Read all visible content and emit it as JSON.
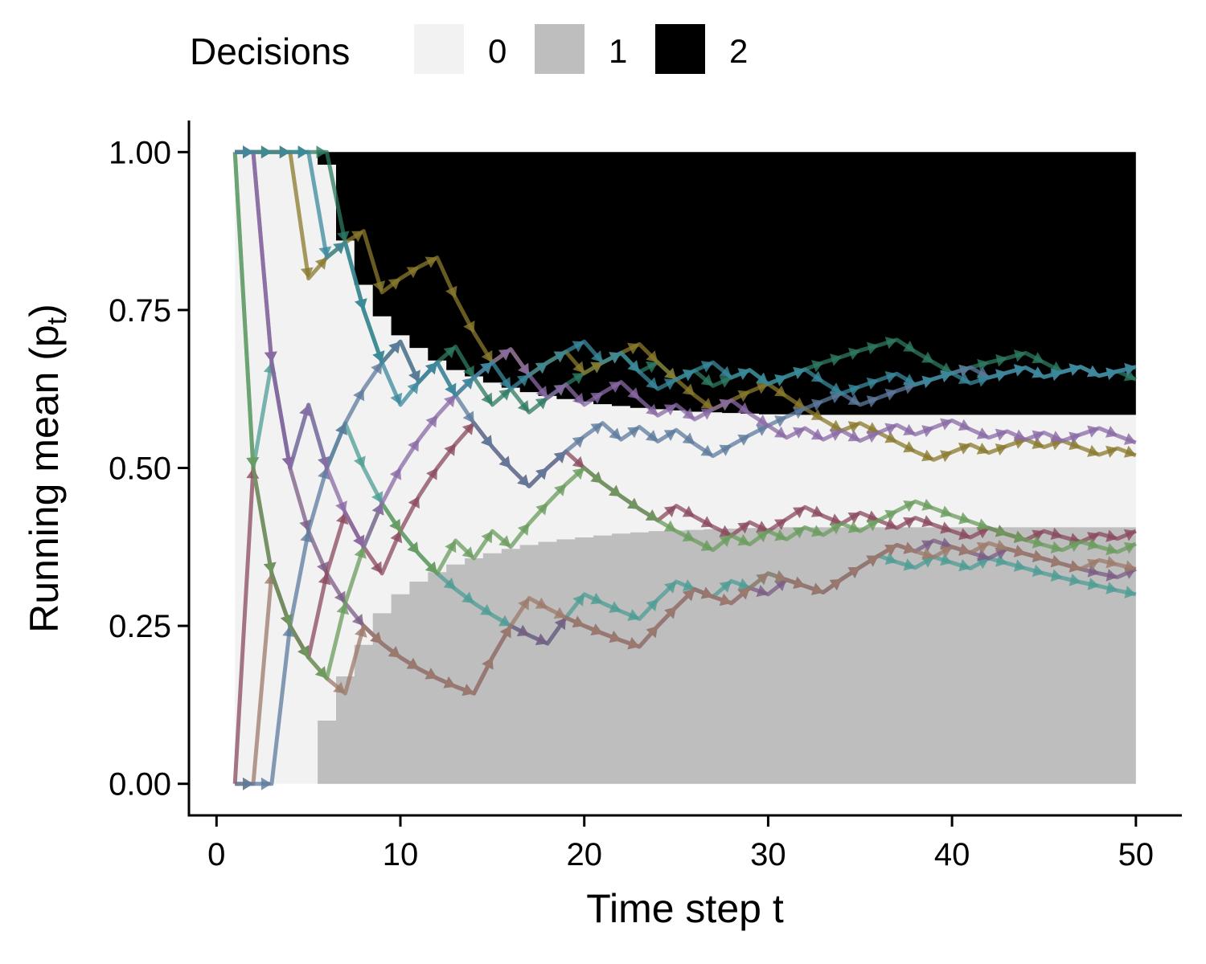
{
  "chart_data": {
    "type": "line",
    "xlabel": "Time step t",
    "ylabel_main": "Running mean (p",
    "ylabel_sub": "t",
    "ylabel_close": ")",
    "xlim": [
      -1.5,
      52.5
    ],
    "ylim": [
      -0.05,
      1.05
    ],
    "x_ticks": [
      0,
      10,
      20,
      30,
      40,
      50
    ],
    "x_tick_labels": [
      "0",
      "10",
      "20",
      "30",
      "40",
      "50"
    ],
    "y_ticks": [
      0,
      0.25,
      0.5,
      0.75,
      1.0
    ],
    "y_tick_labels": [
      "0.00",
      "0.25",
      "0.50",
      "0.75",
      "1.00"
    ],
    "grid": false,
    "legend": {
      "title": "Decisions",
      "position": "top",
      "entries": [
        {
          "label": "0",
          "color": "#F2F2F2"
        },
        {
          "label": "1",
          "color": "#BEBEBE"
        },
        {
          "label": "2",
          "color": "#000000"
        }
      ]
    },
    "decision_regions": [
      {
        "decision": "0",
        "color": "#F2F2F2"
      },
      {
        "decision": "1",
        "color": "#BEBEBE"
      },
      {
        "decision": "2",
        "color": "#000000"
      }
    ],
    "decision_boundaries": {
      "t": [
        1,
        2,
        3,
        4,
        5,
        6,
        7,
        8,
        9,
        10,
        11,
        12,
        13,
        14,
        15,
        16,
        17,
        18,
        19,
        20,
        21,
        22,
        23,
        24,
        25,
        26,
        27,
        28,
        29,
        30,
        31,
        32,
        33,
        34,
        35,
        36,
        37,
        38,
        39,
        40,
        41,
        42,
        43,
        44,
        45,
        46,
        47,
        48,
        49,
        50
      ],
      "upper": [
        1.0,
        1.0,
        1.0,
        1.0,
        1.0,
        0.98,
        0.86,
        0.79,
        0.74,
        0.71,
        0.69,
        0.67,
        0.655,
        0.645,
        0.635,
        0.627,
        0.62,
        0.614,
        0.609,
        0.605,
        0.601,
        0.598,
        0.595,
        0.593,
        0.591,
        0.589,
        0.588,
        0.587,
        0.586,
        0.585,
        0.585,
        0.584,
        0.584,
        0.584,
        0.584,
        0.584,
        0.584,
        0.584,
        0.584,
        0.584,
        0.584,
        0.584,
        0.584,
        0.584,
        0.584,
        0.584,
        0.584,
        0.584,
        0.584,
        0.584
      ],
      "lower": [
        0.0,
        0.0,
        0.0,
        0.0,
        0.0,
        0.1,
        0.17,
        0.22,
        0.27,
        0.3,
        0.32,
        0.335,
        0.347,
        0.357,
        0.365,
        0.372,
        0.378,
        0.383,
        0.387,
        0.39,
        0.393,
        0.396,
        0.398,
        0.4,
        0.401,
        0.402,
        0.403,
        0.404,
        0.405,
        0.405,
        0.406,
        0.406,
        0.406,
        0.406,
        0.406,
        0.406,
        0.406,
        0.406,
        0.406,
        0.406,
        0.406,
        0.406,
        0.406,
        0.406,
        0.406,
        0.406,
        0.406,
        0.406,
        0.406,
        0.406
      ]
    },
    "series": [
      {
        "color": "#4E9C94",
        "x": [
          1,
          2,
          3,
          4,
          5,
          6,
          7,
          8,
          9,
          10,
          11,
          12,
          13,
          14,
          15,
          16,
          17,
          18,
          19,
          20,
          21,
          22,
          23,
          24,
          25,
          26,
          27,
          28,
          29,
          30,
          31,
          32,
          33,
          34,
          35,
          36,
          37,
          38,
          39,
          40,
          41,
          42,
          43,
          44,
          45,
          46,
          47,
          48,
          49,
          50
        ],
        "values": [
          1.0,
          0.5,
          0.667,
          0.5,
          0.6,
          0.5,
          0.571,
          0.5,
          0.444,
          0.4,
          0.364,
          0.333,
          0.308,
          0.286,
          0.267,
          0.25,
          0.235,
          0.222,
          0.263,
          0.3,
          0.286,
          0.273,
          0.261,
          0.292,
          0.32,
          0.308,
          0.296,
          0.321,
          0.31,
          0.333,
          0.323,
          0.313,
          0.303,
          0.324,
          0.343,
          0.361,
          0.351,
          0.342,
          0.359,
          0.35,
          0.341,
          0.357,
          0.349,
          0.341,
          0.333,
          0.326,
          0.319,
          0.313,
          0.306,
          0.3
        ]
      },
      {
        "color": "#7A5C84",
        "x": [
          1,
          2,
          3,
          4,
          5,
          6,
          7,
          8,
          9,
          10,
          11,
          12,
          13,
          14,
          15,
          16,
          17,
          18,
          19,
          20,
          21,
          22,
          23,
          24,
          25,
          26,
          27,
          28,
          29,
          30,
          31,
          32,
          33,
          34,
          35,
          36,
          37,
          38,
          39,
          40,
          41,
          42,
          43,
          44,
          45,
          46,
          47,
          48,
          49,
          50
        ],
        "values": [
          1.0,
          1.0,
          0.667,
          0.5,
          0.4,
          0.333,
          0.286,
          0.25,
          0.222,
          0.2,
          0.182,
          0.167,
          0.154,
          0.143,
          0.2,
          0.25,
          0.235,
          0.222,
          0.263,
          0.25,
          0.238,
          0.227,
          0.217,
          0.25,
          0.28,
          0.308,
          0.296,
          0.286,
          0.31,
          0.3,
          0.323,
          0.313,
          0.303,
          0.324,
          0.343,
          0.361,
          0.378,
          0.368,
          0.385,
          0.375,
          0.366,
          0.357,
          0.372,
          0.364,
          0.356,
          0.348,
          0.34,
          0.333,
          0.327,
          0.34
        ]
      },
      {
        "color": "#2E7A63",
        "x": [
          1,
          2,
          3,
          4,
          5,
          6,
          7,
          8,
          9,
          10,
          11,
          12,
          13,
          14,
          15,
          16,
          17,
          18,
          19,
          20,
          21,
          22,
          23,
          24,
          25,
          26,
          27,
          28,
          29,
          30,
          31,
          32,
          33,
          34,
          35,
          36,
          37,
          38,
          39,
          40,
          41,
          42,
          43,
          44,
          45,
          46,
          47,
          48,
          49,
          50
        ],
        "values": [
          1.0,
          1.0,
          1.0,
          1.0,
          1.0,
          1.0,
          0.857,
          0.75,
          0.667,
          0.7,
          0.636,
          0.667,
          0.692,
          0.643,
          0.6,
          0.625,
          0.588,
          0.611,
          0.632,
          0.65,
          0.667,
          0.682,
          0.652,
          0.667,
          0.64,
          0.654,
          0.63,
          0.643,
          0.655,
          0.633,
          0.645,
          0.656,
          0.667,
          0.676,
          0.686,
          0.694,
          0.703,
          0.684,
          0.667,
          0.65,
          0.659,
          0.667,
          0.674,
          0.682,
          0.667,
          0.652,
          0.66,
          0.646,
          0.653,
          0.64
        ]
      },
      {
        "color": "#8A7A2E",
        "x": [
          1,
          2,
          3,
          4,
          5,
          6,
          7,
          8,
          9,
          10,
          11,
          12,
          13,
          14,
          15,
          16,
          17,
          18,
          19,
          20,
          21,
          22,
          23,
          24,
          25,
          26,
          27,
          28,
          29,
          30,
          31,
          32,
          33,
          34,
          35,
          36,
          37,
          38,
          39,
          40,
          41,
          42,
          43,
          44,
          45,
          46,
          47,
          48,
          49,
          50
        ],
        "values": [
          1.0,
          1.0,
          1.0,
          1.0,
          0.8,
          0.833,
          0.857,
          0.875,
          0.778,
          0.8,
          0.818,
          0.833,
          0.769,
          0.714,
          0.667,
          0.688,
          0.647,
          0.667,
          0.684,
          0.65,
          0.667,
          0.682,
          0.696,
          0.667,
          0.64,
          0.615,
          0.593,
          0.607,
          0.621,
          0.633,
          0.613,
          0.594,
          0.576,
          0.559,
          0.571,
          0.556,
          0.541,
          0.526,
          0.513,
          0.525,
          0.537,
          0.524,
          0.535,
          0.545,
          0.533,
          0.543,
          0.532,
          0.521,
          0.531,
          0.52
        ]
      },
      {
        "color": "#9C7A6A",
        "x": [
          1,
          2,
          3,
          4,
          5,
          6,
          7,
          8,
          9,
          10,
          11,
          12,
          13,
          14,
          15,
          16,
          17,
          18,
          19,
          20,
          21,
          22,
          23,
          24,
          25,
          26,
          27,
          28,
          29,
          30,
          31,
          32,
          33,
          34,
          35,
          36,
          37,
          38,
          39,
          40,
          41,
          42,
          43,
          44,
          45,
          46,
          47,
          48,
          49,
          50
        ],
        "values": [
          0.0,
          0.0,
          0.333,
          0.25,
          0.2,
          0.167,
          0.143,
          0.25,
          0.222,
          0.2,
          0.182,
          0.167,
          0.154,
          0.143,
          0.2,
          0.25,
          0.294,
          0.278,
          0.263,
          0.25,
          0.238,
          0.227,
          0.217,
          0.25,
          0.28,
          0.308,
          0.296,
          0.286,
          0.31,
          0.333,
          0.323,
          0.313,
          0.303,
          0.324,
          0.343,
          0.361,
          0.378,
          0.368,
          0.359,
          0.375,
          0.366,
          0.381,
          0.372,
          0.364,
          0.356,
          0.348,
          0.34,
          0.354,
          0.347,
          0.34
        ]
      },
      {
        "color": "#8B4A5E",
        "x": [
          1,
          2,
          3,
          4,
          5,
          6,
          7,
          8,
          9,
          10,
          11,
          12,
          13,
          14,
          15,
          16,
          17,
          18,
          19,
          20,
          21,
          22,
          23,
          24,
          25,
          26,
          27,
          28,
          29,
          30,
          31,
          32,
          33,
          34,
          35,
          36,
          37,
          38,
          39,
          40,
          41,
          42,
          43,
          44,
          45,
          46,
          47,
          48,
          49,
          50
        ],
        "values": [
          0.0,
          0.5,
          0.333,
          0.25,
          0.2,
          0.333,
          0.429,
          0.375,
          0.333,
          0.4,
          0.455,
          0.5,
          0.538,
          0.571,
          0.533,
          0.5,
          0.471,
          0.5,
          0.526,
          0.5,
          0.476,
          0.455,
          0.435,
          0.417,
          0.44,
          0.423,
          0.407,
          0.393,
          0.414,
          0.4,
          0.419,
          0.438,
          0.424,
          0.412,
          0.429,
          0.417,
          0.405,
          0.421,
          0.41,
          0.4,
          0.39,
          0.405,
          0.395,
          0.386,
          0.4,
          0.391,
          0.383,
          0.396,
          0.388,
          0.4
        ]
      },
      {
        "color": "#5E7A9C",
        "x": [
          1,
          2,
          3,
          4,
          5,
          6,
          7,
          8,
          9,
          10,
          11,
          12,
          13,
          14,
          15,
          16,
          17,
          18,
          19,
          20,
          21,
          22,
          23,
          24,
          25,
          26,
          27,
          28,
          29,
          30,
          31,
          32,
          33,
          34,
          35,
          36,
          37,
          38,
          39,
          40,
          41,
          42,
          43,
          44,
          45,
          46,
          47,
          48,
          49,
          50
        ],
        "values": [
          0.0,
          0.0,
          0.0,
          0.25,
          0.4,
          0.5,
          0.571,
          0.625,
          0.667,
          0.7,
          0.636,
          0.667,
          0.615,
          0.571,
          0.533,
          0.5,
          0.471,
          0.5,
          0.526,
          0.55,
          0.571,
          0.545,
          0.565,
          0.542,
          0.56,
          0.538,
          0.519,
          0.536,
          0.552,
          0.567,
          0.581,
          0.594,
          0.606,
          0.618,
          0.6,
          0.611,
          0.622,
          0.632,
          0.641,
          0.65,
          0.659,
          0.643,
          0.651,
          0.659,
          0.644,
          0.652,
          0.66,
          0.646,
          0.653,
          0.66
        ]
      },
      {
        "color": "#6A9C5E",
        "x": [
          1,
          2,
          3,
          4,
          5,
          6,
          7,
          8,
          9,
          10,
          11,
          12,
          13,
          14,
          15,
          16,
          17,
          18,
          19,
          20,
          21,
          22,
          23,
          24,
          25,
          26,
          27,
          28,
          29,
          30,
          31,
          32,
          33,
          34,
          35,
          36,
          37,
          38,
          39,
          40,
          41,
          42,
          43,
          44,
          45,
          46,
          47,
          48,
          49,
          50
        ],
        "values": [
          1.0,
          0.5,
          0.333,
          0.25,
          0.2,
          0.167,
          0.286,
          0.375,
          0.444,
          0.4,
          0.364,
          0.333,
          0.385,
          0.357,
          0.4,
          0.375,
          0.412,
          0.444,
          0.474,
          0.5,
          0.476,
          0.455,
          0.435,
          0.417,
          0.4,
          0.385,
          0.37,
          0.393,
          0.379,
          0.4,
          0.387,
          0.406,
          0.394,
          0.412,
          0.4,
          0.417,
          0.432,
          0.447,
          0.436,
          0.425,
          0.415,
          0.405,
          0.395,
          0.386,
          0.378,
          0.37,
          0.383,
          0.375,
          0.367,
          0.38
        ]
      },
      {
        "color": "#8A6AA6",
        "x": [
          1,
          2,
          3,
          4,
          5,
          6,
          7,
          8,
          9,
          10,
          11,
          12,
          13,
          14,
          15,
          16,
          17,
          18,
          19,
          20,
          21,
          22,
          23,
          24,
          25,
          26,
          27,
          28,
          29,
          30,
          31,
          32,
          33,
          34,
          35,
          36,
          37,
          38,
          39,
          40,
          41,
          42,
          43,
          44,
          45,
          46,
          47,
          48,
          49,
          50
        ],
        "values": [
          1.0,
          1.0,
          0.667,
          0.5,
          0.6,
          0.5,
          0.429,
          0.375,
          0.444,
          0.5,
          0.545,
          0.583,
          0.615,
          0.643,
          0.667,
          0.688,
          0.647,
          0.611,
          0.632,
          0.6,
          0.619,
          0.636,
          0.609,
          0.583,
          0.6,
          0.577,
          0.593,
          0.607,
          0.586,
          0.567,
          0.548,
          0.563,
          0.545,
          0.559,
          0.543,
          0.556,
          0.568,
          0.553,
          0.564,
          0.575,
          0.561,
          0.548,
          0.558,
          0.545,
          0.556,
          0.543,
          0.553,
          0.563,
          0.551,
          0.54
        ]
      },
      {
        "color": "#3A8A9C",
        "x": [
          1,
          2,
          3,
          4,
          5,
          6,
          7,
          8,
          9,
          10,
          11,
          12,
          13,
          14,
          15,
          16,
          17,
          18,
          19,
          20,
          21,
          22,
          23,
          24,
          25,
          26,
          27,
          28,
          29,
          30,
          31,
          32,
          33,
          34,
          35,
          36,
          37,
          38,
          39,
          40,
          41,
          42,
          43,
          44,
          45,
          46,
          47,
          48,
          49,
          50
        ],
        "values": [
          1.0,
          1.0,
          1.0,
          1.0,
          1.0,
          0.833,
          0.857,
          0.75,
          0.667,
          0.6,
          0.636,
          0.667,
          0.615,
          0.643,
          0.667,
          0.625,
          0.647,
          0.667,
          0.684,
          0.7,
          0.667,
          0.682,
          0.652,
          0.625,
          0.64,
          0.654,
          0.667,
          0.643,
          0.655,
          0.633,
          0.645,
          0.656,
          0.636,
          0.618,
          0.629,
          0.639,
          0.649,
          0.632,
          0.641,
          0.65,
          0.634,
          0.643,
          0.651,
          0.659,
          0.644,
          0.652,
          0.66,
          0.646,
          0.653,
          0.66
        ]
      }
    ]
  }
}
